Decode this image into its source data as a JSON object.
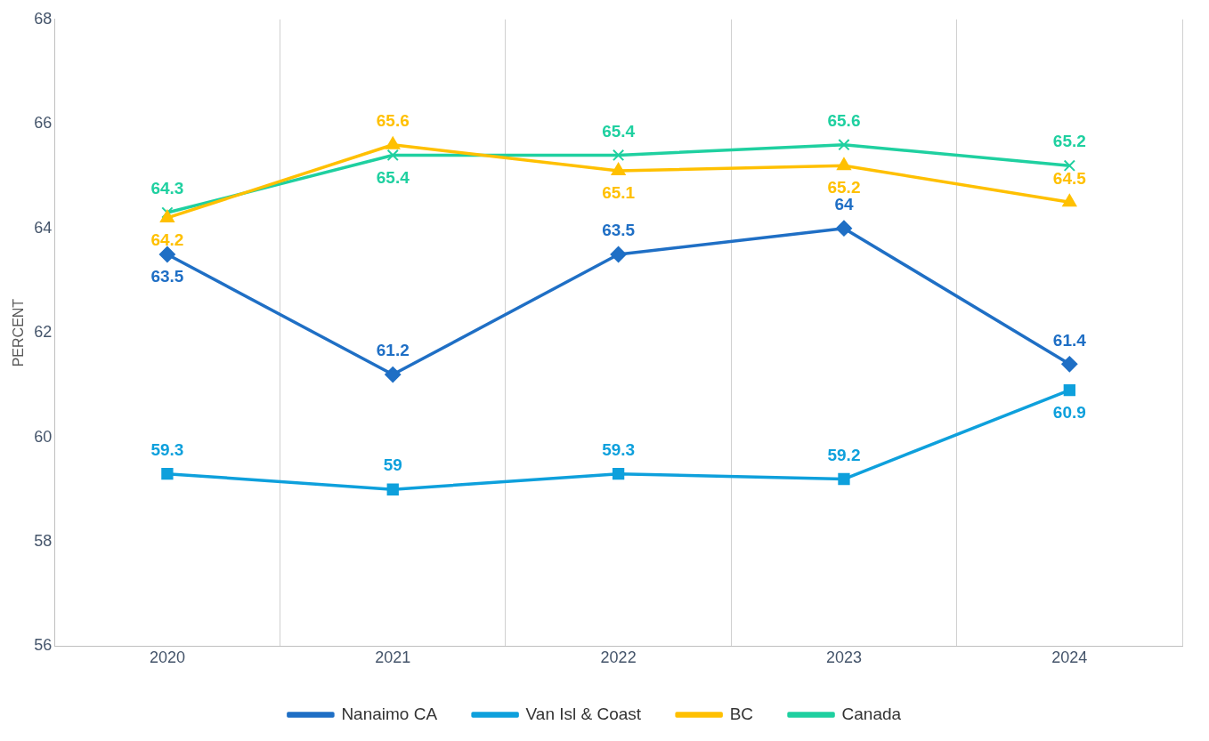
{
  "chart_data": {
    "type": "line",
    "ylabel": "PERCENT",
    "categories": [
      "2020",
      "2021",
      "2022",
      "2023",
      "2024"
    ],
    "series": [
      {
        "name": "Nanaimo CA",
        "color": "#1f6fc5",
        "marker": "diamond",
        "values": [
          63.5,
          61.2,
          63.5,
          64,
          61.4
        ]
      },
      {
        "name": "Van Isl & Coast",
        "color": "#0ea0dc",
        "marker": "square",
        "values": [
          59.3,
          59,
          59.3,
          59.2,
          60.9
        ]
      },
      {
        "name": "BC",
        "color": "#ffc000",
        "marker": "triangle",
        "values": [
          64.2,
          65.6,
          65.1,
          65.2,
          64.5
        ]
      },
      {
        "name": "Canada",
        "color": "#1fd0a0",
        "marker": "cross",
        "values": [
          64.3,
          65.4,
          65.4,
          65.6,
          65.2
        ]
      }
    ],
    "ylim": [
      56,
      68
    ],
    "yticks": [
      56,
      58,
      60,
      62,
      64,
      66,
      68
    ],
    "grid": "x",
    "legend": "bottom",
    "data_labels": true,
    "line_style": "solid"
  }
}
